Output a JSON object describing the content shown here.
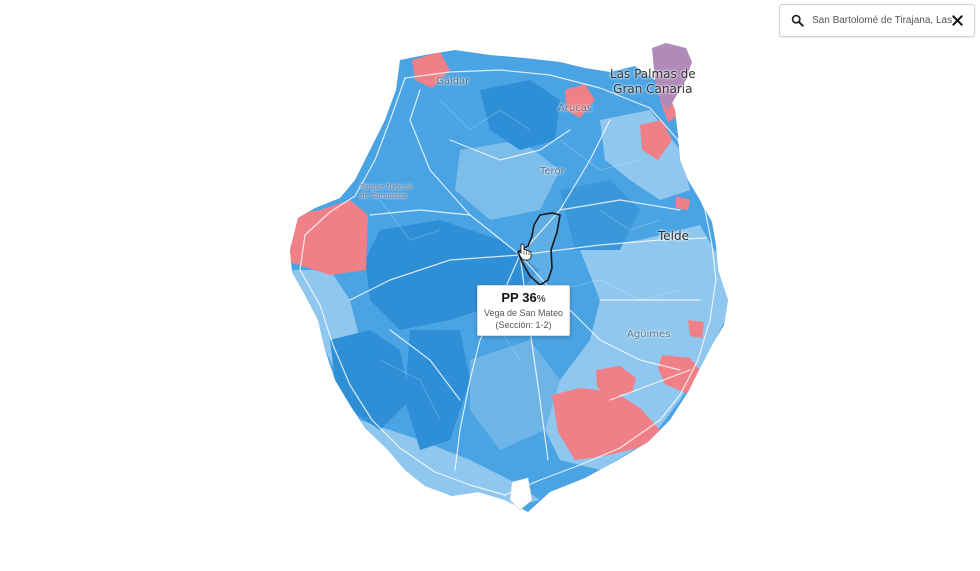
{
  "search": {
    "value": "San Bartolomé de Tirajana, Las Palmas"
  },
  "labels": {
    "las_palmas": [
      "Las Palmas de",
      "Gran Canaria"
    ],
    "telde": "Telde",
    "galdar": "Gáldar",
    "arucas": "Arucas",
    "teror": "Teror",
    "aguimes": "Agüimes",
    "park": [
      "Parque Natural",
      "de Tamadaba"
    ]
  },
  "tooltip": {
    "party": "PP",
    "value": "36",
    "unit": "%",
    "municipality": "Vega de San Mateo",
    "section": "(Sección: 1-2)"
  },
  "colors": {
    "pp_dark": "#2f8fd6",
    "pp_mid": "#4aa3e3",
    "pp_light": "#8fc7ee",
    "psoe": "#f08088",
    "other": "#b08ab8"
  },
  "icons": {
    "search": "search-icon",
    "close": "close-icon",
    "cursor": "hand-cursor-icon"
  }
}
